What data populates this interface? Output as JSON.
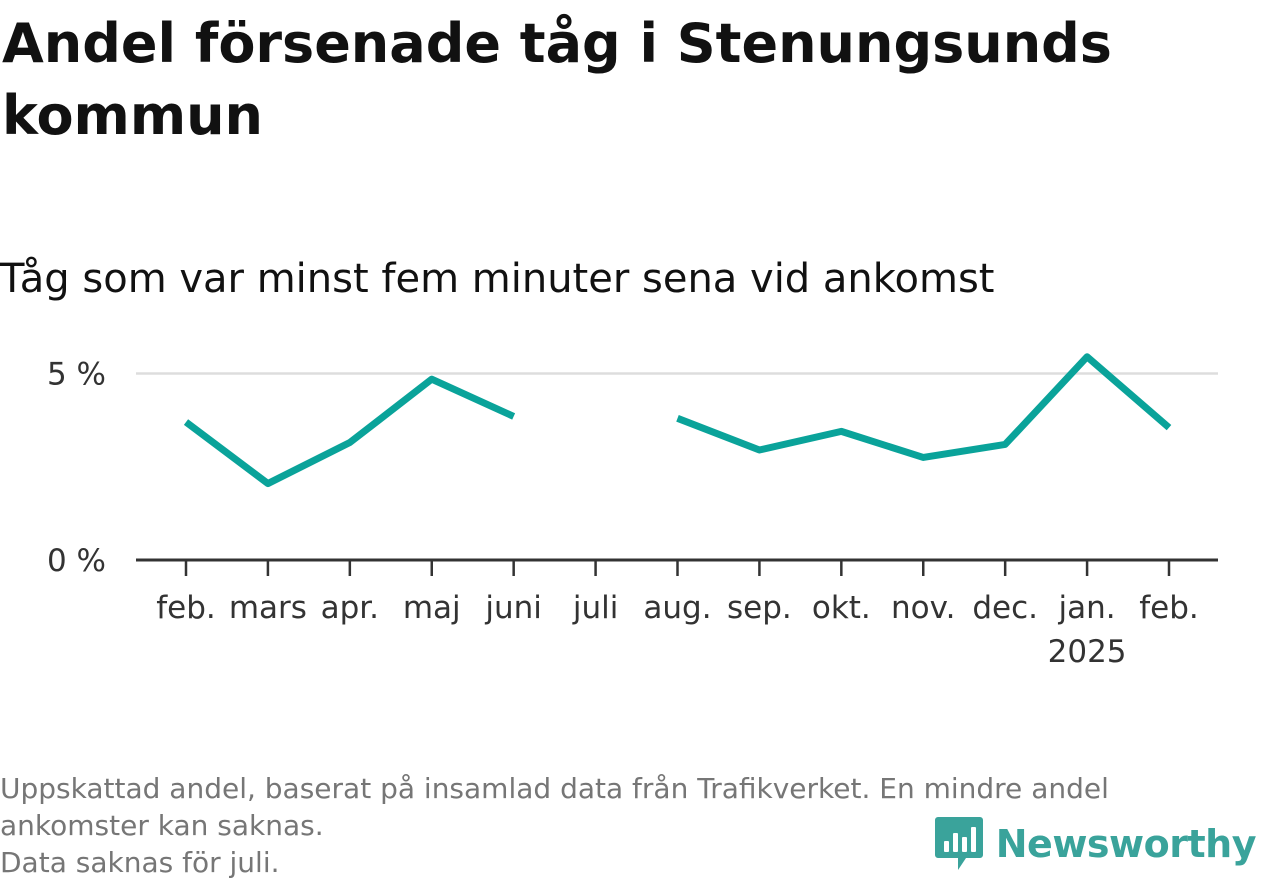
{
  "title": "Andel försenade tåg i Stenungsunds kommun",
  "subtitle": "Tåg som var minst fem minuter sena vid ankomst",
  "footnote": {
    "line1": "Uppskattad andel, baserat på insamlad data från Trafikverket. En mindre andel ankomster kan saknas.",
    "line2": "Data saknas för juli."
  },
  "brand": {
    "name": "Newsworthy",
    "icon": "newsworthy-logo-icon",
    "color": "#3aa39b"
  },
  "colors": {
    "line": "#0aa39a",
    "axis": "#333333",
    "grid": "#dddddd",
    "tick_text": "#333333"
  },
  "chart_data": {
    "type": "line",
    "title": "",
    "xlabel": "",
    "ylabel": "",
    "categories": [
      "feb.",
      "mars",
      "apr.",
      "maj",
      "juni",
      "juli",
      "aug.",
      "sep.",
      "okt.",
      "nov.",
      "dec.",
      "jan.",
      "feb."
    ],
    "category_sublabels": [
      "",
      "",
      "",
      "",
      "",
      "",
      "",
      "",
      "",
      "",
      "",
      "2025",
      ""
    ],
    "series": [
      {
        "name": "",
        "values": [
          3.7,
          2.05,
          3.15,
          4.85,
          3.85,
          null,
          3.8,
          2.95,
          3.45,
          2.75,
          3.1,
          5.45,
          3.55
        ]
      }
    ],
    "ylim": [
      0,
      5.9
    ],
    "yticks": [
      0,
      5
    ],
    "ytick_labels": [
      "0 %",
      "5 %"
    ],
    "grid": true,
    "legend": "none"
  }
}
